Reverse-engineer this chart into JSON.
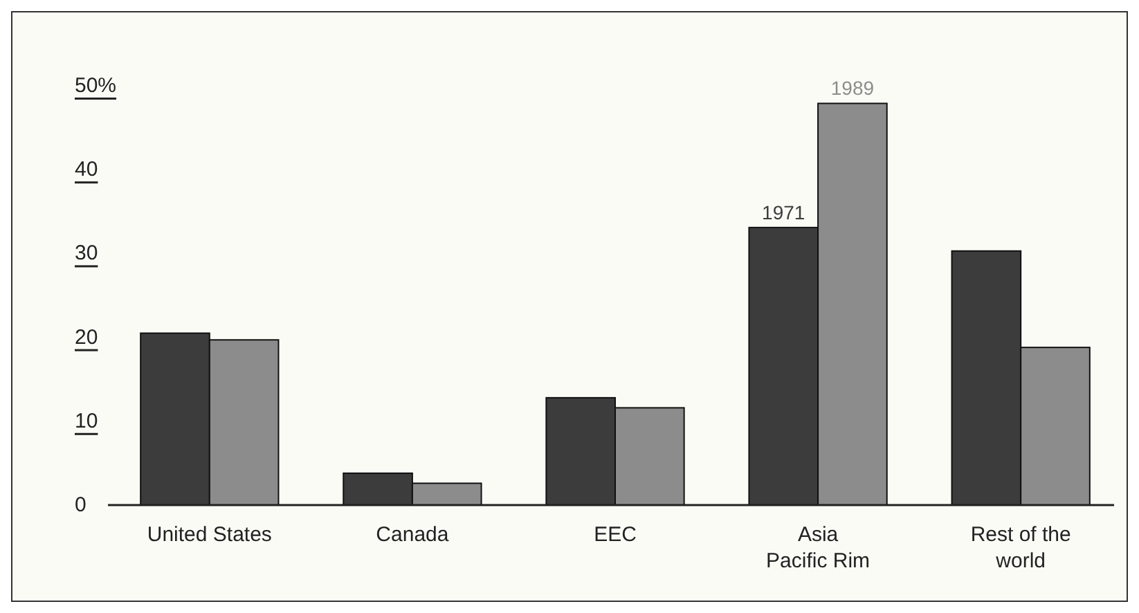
{
  "chart_data": {
    "type": "bar",
    "categories": [
      "United States",
      "Canada",
      "EEC",
      "Asia\nPacific Rim",
      "Rest of the\nworld"
    ],
    "series": [
      {
        "name": "1971",
        "color": "#3c3c3c",
        "values": [
          20.5,
          3.8,
          12.8,
          33.1,
          30.3
        ]
      },
      {
        "name": "1989",
        "color": "#8c8c8c",
        "values": [
          19.7,
          2.6,
          11.6,
          47.9,
          18.8
        ]
      }
    ],
    "ylim": [
      0,
      50
    ],
    "yticks": [
      0,
      10,
      20,
      30,
      {
        "value": 40,
        "label": "40"
      },
      {
        "value": 50,
        "label": "50%"
      }
    ],
    "grid": false,
    "legend": false
  }
}
